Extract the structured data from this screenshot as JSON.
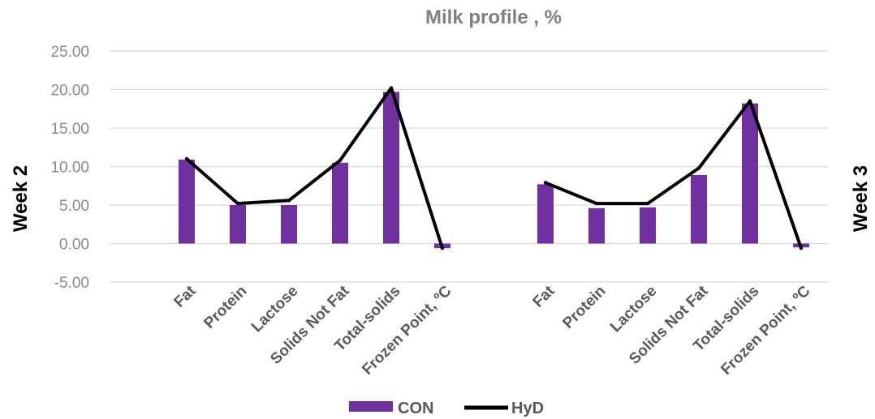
{
  "chart_data": {
    "type": "bar",
    "title": "Milk profile , %",
    "ylim": [
      -5,
      25
    ],
    "yticks": [
      "-5.00",
      "0.00",
      "5.00",
      "10.00",
      "15.00",
      "20.00",
      "25.00"
    ],
    "ytick_values": [
      -5,
      0,
      5,
      10,
      15,
      20,
      25
    ],
    "grid": true,
    "legend_position": "bottom",
    "categories": [
      "Fat",
      "Protein",
      "Lactose",
      "Solids Not Fat",
      "Total-solids",
      "Frozen Point, ºC"
    ],
    "groups": [
      {
        "label": "Week 2",
        "series": [
          {
            "name": "CON",
            "type": "bar",
            "values": [
              10.9,
              5.0,
              5.0,
              10.5,
              19.7,
              -0.6
            ]
          },
          {
            "name": "HyD",
            "type": "line",
            "values": [
              11.0,
              5.2,
              5.6,
              10.8,
              20.2,
              -0.6
            ]
          }
        ]
      },
      {
        "label": "Week 3",
        "series": [
          {
            "name": "CON",
            "type": "bar",
            "values": [
              7.7,
              4.6,
              4.7,
              8.9,
              18.2,
              -0.5
            ]
          },
          {
            "name": "HyD",
            "type": "line",
            "values": [
              7.9,
              5.2,
              5.2,
              9.8,
              18.5,
              -0.6
            ]
          }
        ]
      }
    ],
    "legend": [
      {
        "name": "CON",
        "color": "#7030a0",
        "marker": "bar"
      },
      {
        "name": "HyD",
        "color": "#000000",
        "marker": "line"
      }
    ],
    "colors": {
      "bar": "#7030a0",
      "line": "#000000",
      "grid": "#d9d9d9"
    }
  }
}
